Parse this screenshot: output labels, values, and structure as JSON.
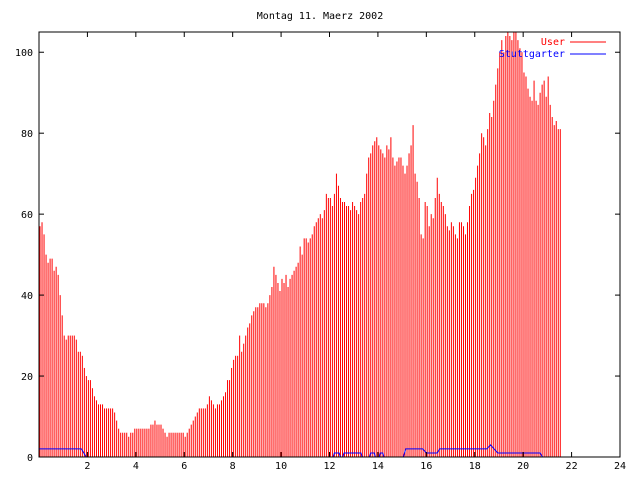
{
  "chart_data": {
    "type": "bar",
    "title": "Montag 11. Maerz 2002",
    "xlabel": "",
    "ylabel": "",
    "xlim": [
      0,
      24
    ],
    "ylim": [
      0,
      105
    ],
    "x_ticks": [
      2,
      4,
      6,
      8,
      10,
      12,
      14,
      16,
      18,
      20,
      22,
      24
    ],
    "y_ticks": [
      0,
      20,
      40,
      60,
      80,
      100
    ],
    "grid": false,
    "legend_position": "top-right",
    "series": [
      {
        "name": "User",
        "color": "#ff0000",
        "style": "impulses",
        "x_step": 0.0833,
        "values": [
          57,
          58,
          55,
          50,
          48,
          49,
          49,
          46,
          47,
          45,
          40,
          35,
          30,
          29,
          30,
          30,
          30,
          30,
          29,
          26,
          26,
          25,
          22,
          20,
          19,
          19,
          17,
          15,
          14,
          13,
          13,
          13,
          12,
          12,
          12,
          12,
          12,
          11,
          9,
          7,
          6,
          6,
          6,
          6,
          5,
          6,
          6,
          7,
          7,
          7,
          7,
          7,
          7,
          7,
          7,
          8,
          8,
          9,
          8,
          8,
          8,
          7,
          6,
          5,
          6,
          6,
          6,
          6,
          6,
          6,
          6,
          6,
          5,
          6,
          7,
          8,
          9,
          10,
          11,
          12,
          12,
          12,
          12,
          13,
          15,
          14,
          13,
          12,
          13,
          13,
          14,
          15,
          16,
          19,
          19,
          22,
          24,
          25,
          25,
          30,
          26,
          28,
          30,
          32,
          33,
          35,
          36,
          37,
          37,
          38,
          38,
          38,
          37,
          38,
          40,
          42,
          47,
          45,
          43,
          41,
          44,
          43,
          45,
          42,
          44,
          45,
          46,
          47,
          48,
          52,
          50,
          54,
          54,
          53,
          54,
          55,
          57,
          58,
          59,
          60,
          59,
          61,
          65,
          64,
          64,
          62,
          65,
          70,
          67,
          64,
          63,
          63,
          62,
          62,
          61,
          63,
          62,
          61,
          60,
          63,
          64,
          65,
          70,
          74,
          75,
          77,
          78,
          79,
          77,
          76,
          75,
          74,
          77,
          76,
          79,
          74,
          72,
          73,
          74,
          74,
          72,
          70,
          72,
          75,
          77,
          82,
          70,
          68,
          64,
          55,
          54,
          63,
          62,
          57,
          60,
          59,
          64,
          69,
          65,
          63,
          62,
          60,
          57,
          56,
          58,
          57,
          55,
          54,
          58,
          58,
          57,
          55,
          58,
          62,
          65,
          66,
          69,
          72,
          75,
          80,
          79,
          77,
          81,
          85,
          84,
          88,
          92,
          96,
          100,
          103,
          100,
          104,
          106,
          104,
          103,
          106,
          105,
          103,
          101,
          100,
          95,
          94,
          91,
          89,
          88,
          93,
          88,
          87,
          90,
          92,
          93,
          89,
          94,
          87,
          84,
          82,
          83,
          81,
          81
        ]
      },
      {
        "name": "Stuttgarter",
        "color": "#0000ff",
        "style": "lines",
        "points": [
          [
            0,
            2
          ],
          [
            1.75,
            2
          ],
          [
            1.95,
            0
          ],
          [
            12.15,
            0
          ],
          [
            12.2,
            1
          ],
          [
            12.4,
            1
          ],
          [
            12.45,
            0
          ],
          [
            12.55,
            0
          ],
          [
            12.6,
            1
          ],
          [
            13.3,
            1
          ],
          [
            13.35,
            0
          ],
          [
            13.65,
            0
          ],
          [
            13.7,
            1
          ],
          [
            13.85,
            1
          ],
          [
            13.9,
            0
          ],
          [
            14.05,
            0
          ],
          [
            14.1,
            1
          ],
          [
            14.2,
            1
          ],
          [
            14.25,
            0
          ],
          [
            15.05,
            0
          ],
          [
            15.15,
            2
          ],
          [
            15.85,
            2
          ],
          [
            16,
            1
          ],
          [
            16.45,
            1
          ],
          [
            16.55,
            2
          ],
          [
            18.5,
            2
          ],
          [
            18.65,
            3
          ],
          [
            18.8,
            2
          ],
          [
            18.95,
            1
          ],
          [
            20.7,
            1
          ],
          [
            20.8,
            0
          ],
          [
            24,
            0
          ]
        ]
      }
    ]
  }
}
